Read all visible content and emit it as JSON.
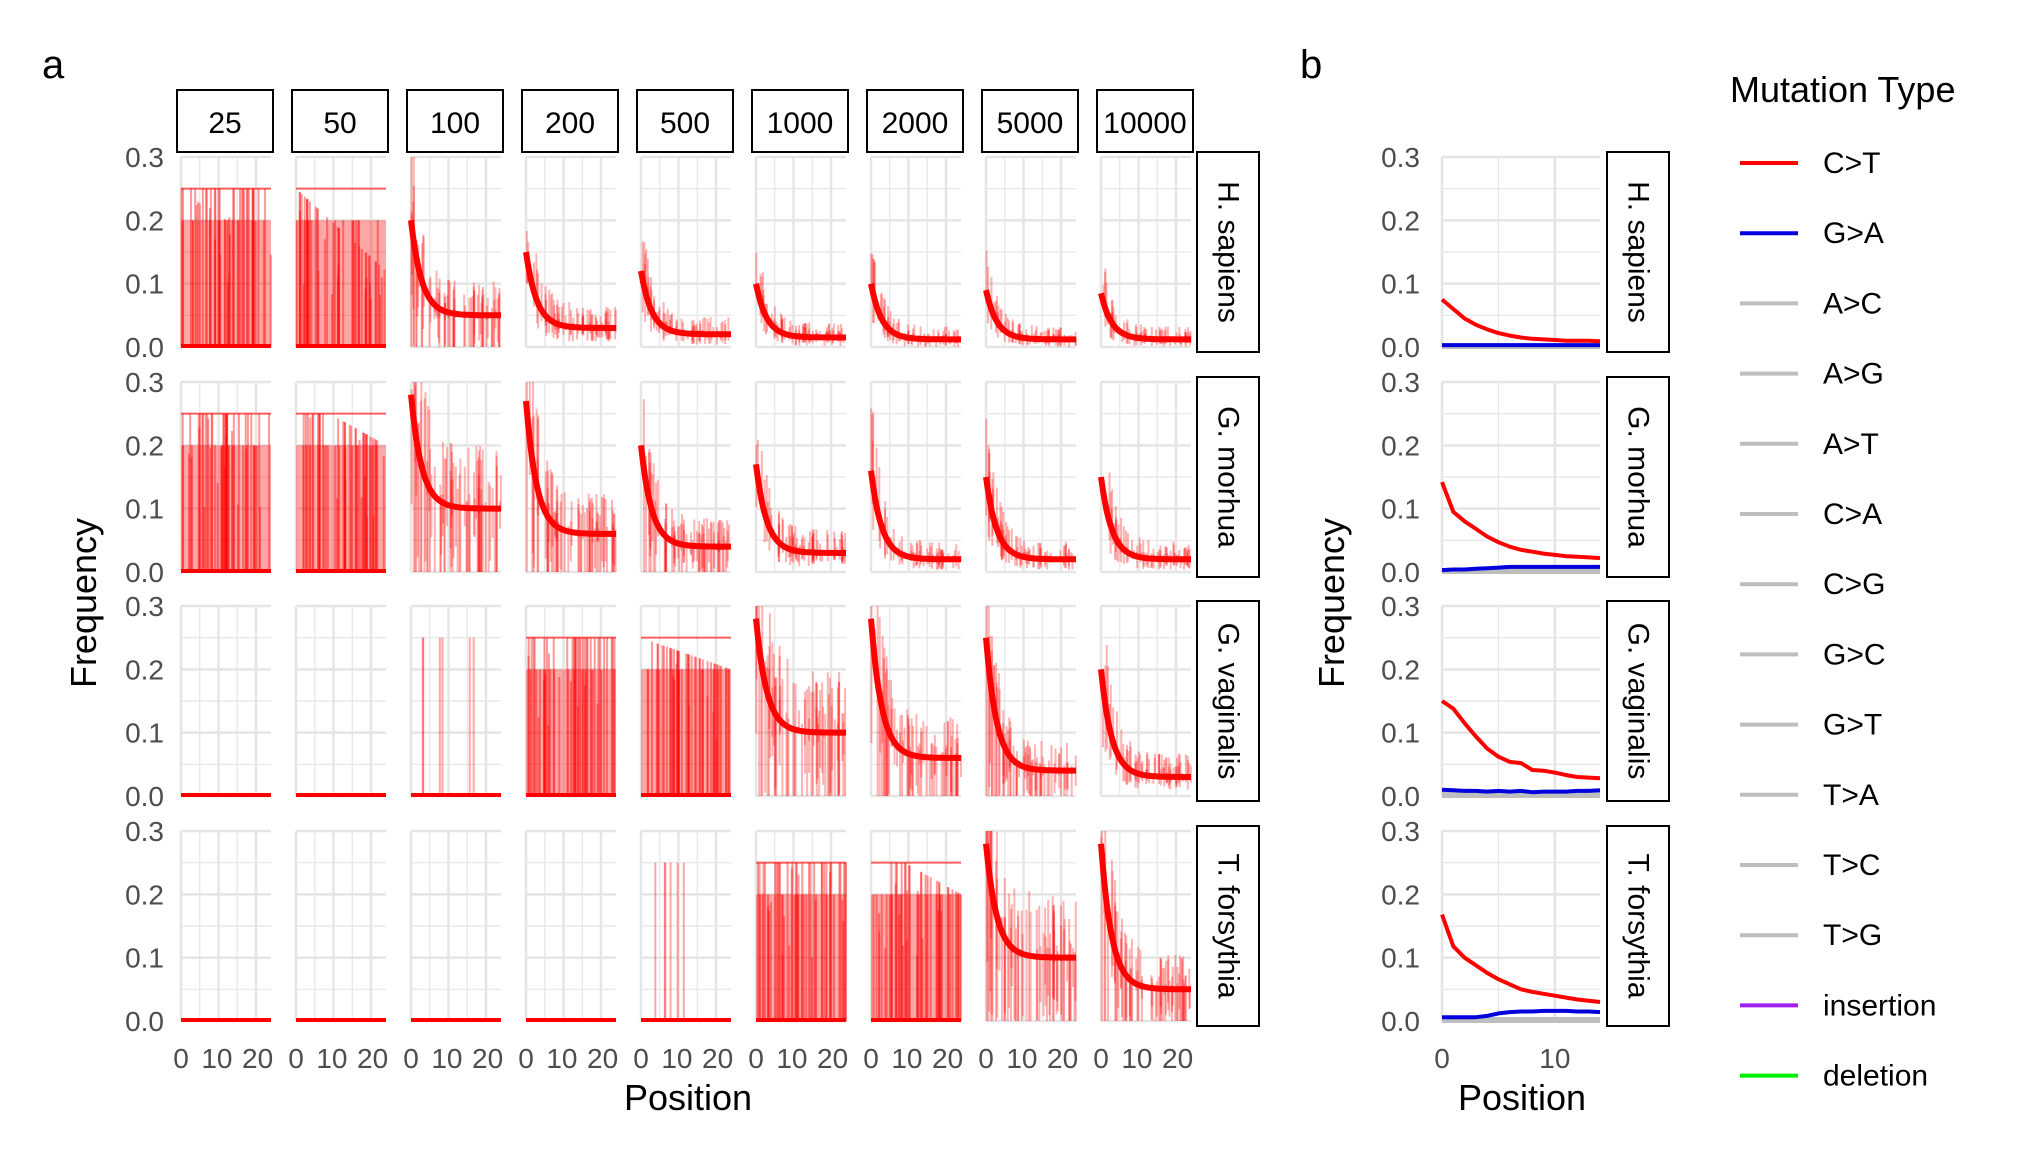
{
  "figure": {
    "panel_a_label": "a",
    "panel_b_label": "b",
    "legend_title": "Mutation Type"
  },
  "colors": {
    "red": "#ff0000",
    "blue": "#0000dd",
    "grey": "#bebebe",
    "purple": "#a020f0",
    "green": "#00ee00",
    "grid": "#e5e5e5",
    "axis_text": "#4d4d4d"
  },
  "legend": [
    {
      "label": "C>T",
      "color": "#ff0000"
    },
    {
      "label": "G>A",
      "color": "#0000dd"
    },
    {
      "label": "A>C",
      "color": "#bebebe"
    },
    {
      "label": "A>G",
      "color": "#bebebe"
    },
    {
      "label": "A>T",
      "color": "#bebebe"
    },
    {
      "label": "C>A",
      "color": "#bebebe"
    },
    {
      "label": "C>G",
      "color": "#bebebe"
    },
    {
      "label": "G>C",
      "color": "#bebebe"
    },
    {
      "label": "G>T",
      "color": "#bebebe"
    },
    {
      "label": "T>A",
      "color": "#bebebe"
    },
    {
      "label": "T>C",
      "color": "#bebebe"
    },
    {
      "label": "T>G",
      "color": "#bebebe"
    },
    {
      "label": "insertion",
      "color": "#a020f0"
    },
    {
      "label": "deletion",
      "color": "#00ee00"
    }
  ],
  "chart_data": [
    {
      "panel": "a",
      "type": "line",
      "xlabel": "Position",
      "ylabel": "Frequency",
      "ylim": [
        0,
        0.3
      ],
      "yticks": [
        "0.0",
        "0.1",
        "0.2",
        "0.3"
      ],
      "xticks": [
        "0",
        "10",
        "20"
      ],
      "xrange": [
        0,
        24
      ],
      "grid": true,
      "column_facets": [
        "25",
        "50",
        "100",
        "200",
        "500",
        "1000",
        "2000",
        "5000",
        "10000"
      ],
      "row_facets": [
        "H. sapiens",
        "G. morhua",
        "G. vaginalis",
        "T. forsythia"
      ],
      "series_name": "C>T",
      "cells": [
        [
          {
            "start": 0.25,
            "end": 0.25,
            "density": "discrete"
          },
          {
            "start": 0.25,
            "end": 0.12,
            "density": "discrete"
          },
          {
            "start": 0.2,
            "end": 0.05,
            "density": "high"
          },
          {
            "start": 0.15,
            "end": 0.03,
            "density": "high"
          },
          {
            "start": 0.12,
            "end": 0.02,
            "density": "high"
          },
          {
            "start": 0.1,
            "end": 0.015,
            "density": "high"
          },
          {
            "start": 0.1,
            "end": 0.012,
            "density": "high"
          },
          {
            "start": 0.09,
            "end": 0.012,
            "density": "high"
          },
          {
            "start": 0.085,
            "end": 0.012,
            "density": "high"
          }
        ],
        [
          {
            "start": 0.25,
            "end": 0.25,
            "density": "discrete"
          },
          {
            "start": 0.28,
            "end": 0.2,
            "density": "discrete"
          },
          {
            "start": 0.28,
            "end": 0.1,
            "density": "high"
          },
          {
            "start": 0.27,
            "end": 0.06,
            "density": "high"
          },
          {
            "start": 0.2,
            "end": 0.04,
            "density": "high"
          },
          {
            "start": 0.17,
            "end": 0.03,
            "density": "high"
          },
          {
            "start": 0.16,
            "end": 0.02,
            "density": "high"
          },
          {
            "start": 0.15,
            "end": 0.02,
            "density": "high"
          },
          {
            "start": 0.15,
            "end": 0.02,
            "density": "high"
          }
        ],
        [
          {
            "start": 0,
            "end": 0,
            "density": "none"
          },
          {
            "start": 0,
            "end": 0,
            "density": "none"
          },
          {
            "start": 0.25,
            "end": 0.25,
            "density": "sparse"
          },
          {
            "start": 0.25,
            "end": 0.25,
            "density": "discrete"
          },
          {
            "start": 0.25,
            "end": 0.2,
            "density": "discrete"
          },
          {
            "start": 0.28,
            "end": 0.1,
            "density": "high"
          },
          {
            "start": 0.28,
            "end": 0.06,
            "density": "high"
          },
          {
            "start": 0.25,
            "end": 0.04,
            "density": "high"
          },
          {
            "start": 0.2,
            "end": 0.03,
            "density": "high"
          }
        ],
        [
          {
            "start": 0,
            "end": 0,
            "density": "none"
          },
          {
            "start": 0,
            "end": 0,
            "density": "none"
          },
          {
            "start": 0,
            "end": 0,
            "density": "none"
          },
          {
            "start": 0,
            "end": 0,
            "density": "none"
          },
          {
            "start": 0.25,
            "end": 0.25,
            "density": "sparse"
          },
          {
            "start": 0.25,
            "end": 0.25,
            "density": "discrete"
          },
          {
            "start": 0.28,
            "end": 0.2,
            "density": "discrete"
          },
          {
            "start": 0.28,
            "end": 0.1,
            "density": "high"
          },
          {
            "start": 0.28,
            "end": 0.05,
            "density": "high"
          }
        ]
      ]
    },
    {
      "panel": "b",
      "type": "line",
      "xlabel": "Position",
      "ylabel": "Frequency",
      "ylim": [
        0,
        0.3
      ],
      "yticks": [
        "0.0",
        "0.1",
        "0.2",
        "0.3"
      ],
      "xticks": [
        "0",
        "10"
      ],
      "xrange": [
        0,
        14
      ],
      "grid": true,
      "row_facets": [
        "H. sapiens",
        "G. morhua",
        "G. vaginalis",
        "T. forsythia"
      ],
      "x": [
        0,
        1,
        2,
        3,
        4,
        5,
        6,
        7,
        8,
        9,
        10,
        11,
        12,
        13,
        14
      ],
      "facets": [
        {
          "row": "H. sapiens",
          "series": [
            {
              "name": "C>T",
              "color": "#ff0000",
              "values": [
                0.075,
                0.06,
                0.045,
                0.035,
                0.028,
                0.022,
                0.018,
                0.015,
                0.013,
                0.012,
                0.011,
                0.01,
                0.01,
                0.01,
                0.009
              ]
            },
            {
              "name": "G>A",
              "color": "#0000dd",
              "values": [
                0.003,
                0.003,
                0.003,
                0.003,
                0.003,
                0.003,
                0.003,
                0.003,
                0.003,
                0.003,
                0.003,
                0.003,
                0.003,
                0.003,
                0.003
              ]
            }
          ]
        },
        {
          "row": "G. morhua",
          "series": [
            {
              "name": "C>T",
              "color": "#ff0000",
              "values": [
                0.142,
                0.095,
                0.08,
                0.068,
                0.056,
                0.047,
                0.04,
                0.035,
                0.032,
                0.029,
                0.027,
                0.025,
                0.024,
                0.023,
                0.022
              ]
            },
            {
              "name": "G>A",
              "color": "#0000dd",
              "values": [
                0.003,
                0.004,
                0.004,
                0.005,
                0.006,
                0.007,
                0.008,
                0.008,
                0.008,
                0.008,
                0.008,
                0.008,
                0.008,
                0.008,
                0.008
              ]
            }
          ]
        },
        {
          "row": "G. vaginalis",
          "series": [
            {
              "name": "C>T",
              "color": "#ff0000",
              "values": [
                0.15,
                0.138,
                0.115,
                0.094,
                0.075,
                0.062,
                0.054,
                0.052,
                0.041,
                0.04,
                0.037,
                0.033,
                0.03,
                0.029,
                0.028
              ]
            },
            {
              "name": "G>A",
              "color": "#0000dd",
              "values": [
                0.01,
                0.009,
                0.008,
                0.008,
                0.007,
                0.008,
                0.007,
                0.008,
                0.006,
                0.007,
                0.007,
                0.007,
                0.008,
                0.008,
                0.009
              ]
            }
          ]
        },
        {
          "row": "T. forsythia",
          "series": [
            {
              "name": "C>T",
              "color": "#ff0000",
              "values": [
                0.168,
                0.118,
                0.1,
                0.088,
                0.076,
                0.066,
                0.058,
                0.05,
                0.046,
                0.043,
                0.04,
                0.037,
                0.034,
                0.032,
                0.03
              ]
            },
            {
              "name": "G>A",
              "color": "#0000dd",
              "values": [
                0.006,
                0.006,
                0.006,
                0.006,
                0.008,
                0.012,
                0.014,
                0.015,
                0.015,
                0.016,
                0.016,
                0.016,
                0.015,
                0.015,
                0.014
              ]
            }
          ]
        }
      ]
    }
  ]
}
